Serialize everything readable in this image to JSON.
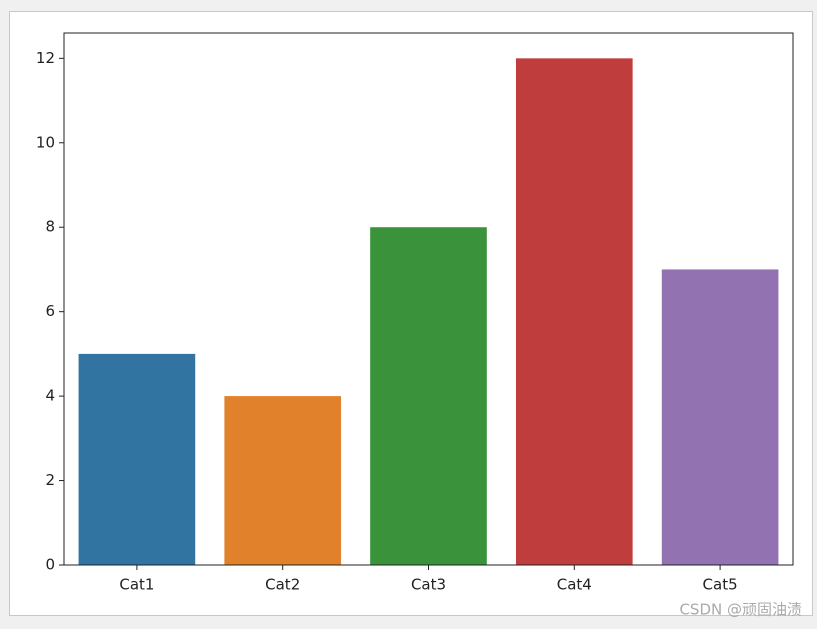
{
  "chart_data": {
    "type": "bar",
    "categories": [
      "Cat1",
      "Cat2",
      "Cat3",
      "Cat4",
      "Cat5"
    ],
    "values": [
      5,
      4,
      8,
      12,
      7
    ],
    "colors": [
      "#3274a1",
      "#e1812c",
      "#3a923a",
      "#c03d3e",
      "#9372b2"
    ],
    "ylim": [
      0,
      12.6
    ],
    "yticks": [
      0,
      2,
      4,
      6,
      8,
      10,
      12
    ],
    "grid": false
  },
  "watermark": "CSDN @顽固油渍"
}
